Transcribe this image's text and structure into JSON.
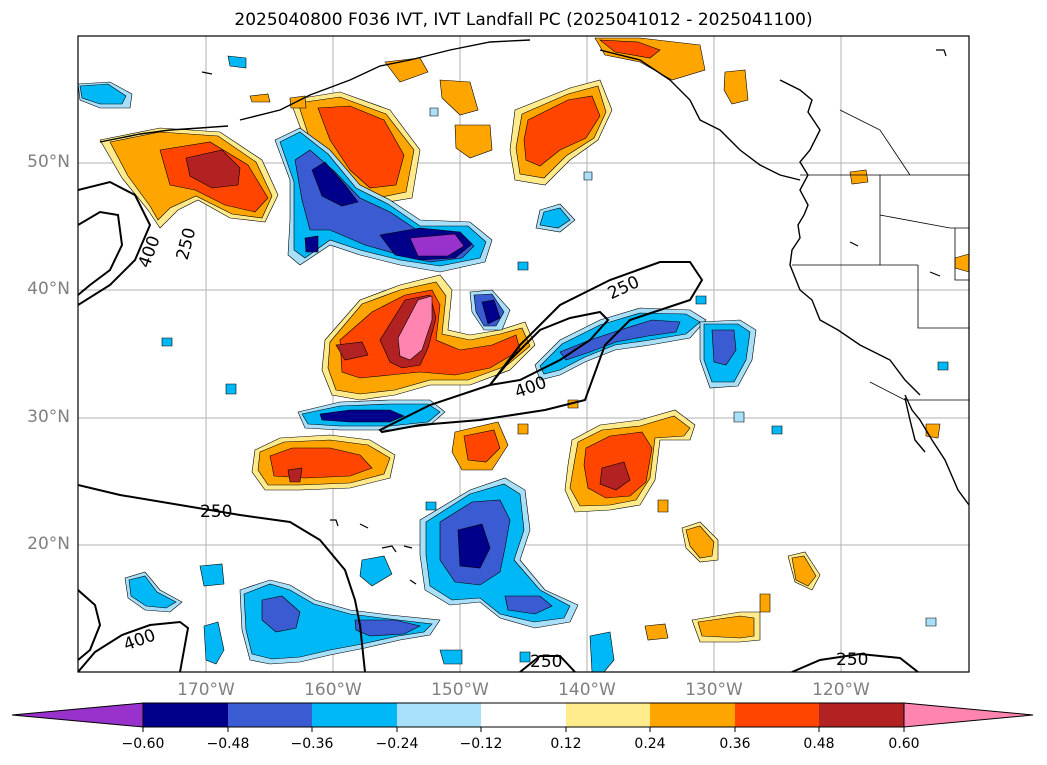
{
  "title": "2025040800 F036 IVT, IVT Landfall PC (2025041012 - 2025041100)",
  "lat_labels": [
    "50°N",
    "40°N",
    "30°N",
    "20°N"
  ],
  "lon_labels": [
    "170°W",
    "160°W",
    "150°W",
    "140°W",
    "130°W",
    "120°W"
  ],
  "contour_labels": [
    "400",
    "250",
    "250",
    "400",
    "250",
    "400",
    "250",
    "250"
  ],
  "colorbar": {
    "ticks": [
      "−0.60",
      "−0.48",
      "−0.36",
      "−0.24",
      "−0.12",
      "0.12",
      "0.24",
      "0.36",
      "0.48",
      "0.60"
    ],
    "colors": [
      "#9932cc",
      "#00008b",
      "#3a5bd1",
      "#00b8f5",
      "#a8e0fa",
      "#ffffff",
      "#ffeb8c",
      "#ffa500",
      "#ff4500",
      "#b22222",
      "#ff85b0"
    ]
  }
}
